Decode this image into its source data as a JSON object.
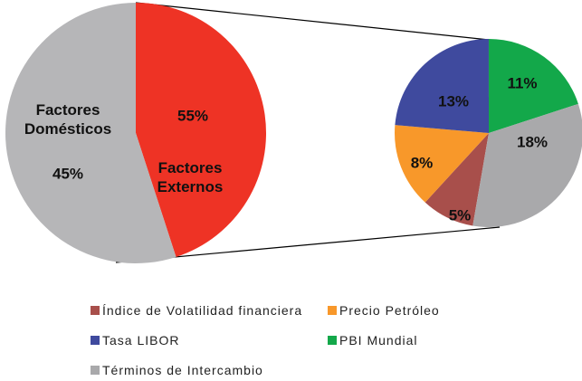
{
  "chart_data": [
    {
      "type": "pie",
      "categories": [
        "Factores Domésticos",
        "Factores Externos"
      ],
      "values": [
        45,
        55
      ],
      "value_labels": [
        "45%",
        "55%"
      ],
      "colors": [
        "#ee3325",
        "#b6b6b8"
      ]
    },
    {
      "type": "pie",
      "categories": [
        "Índice de Volatilidad financiera",
        "Precio Petróleo",
        "Tasa LIBOR",
        "PBI Mundial",
        "Términos de Intercambio"
      ],
      "values": [
        5,
        8,
        13,
        11,
        18
      ],
      "value_labels": [
        "5%",
        "8%",
        "13%",
        "11%",
        "18%"
      ],
      "colors": [
        "#a84f4b",
        "#f8982a",
        "#3f4a9e",
        "#13a84a",
        "#a9a9ab"
      ],
      "legend": "bottom"
    }
  ]
}
